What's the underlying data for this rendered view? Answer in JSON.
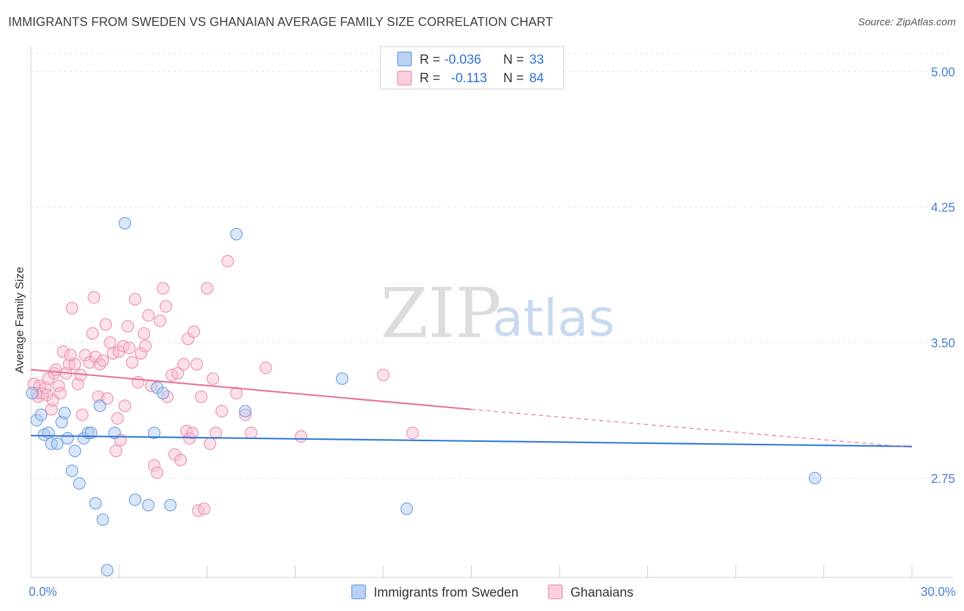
{
  "chart_data": {
    "type": "scatter",
    "title": "IMMIGRANTS FROM SWEDEN VS GHANAIAN AVERAGE FAMILY SIZE CORRELATION CHART",
    "source": "Source: ZipAtlas.com",
    "ylabel": "Average Family Size",
    "xlim": [
      0,
      30
    ],
    "ylim": [
      2.2,
      5.1
    ],
    "x_tick_labels": [
      "0.0%",
      "30.0%"
    ],
    "y_ticks": [
      2.75,
      3.5,
      4.25,
      5.0
    ],
    "y_tick_labels": [
      "2.75",
      "3.50",
      "4.25",
      "5.00"
    ],
    "watermark": {
      "zip": "ZIP",
      "atlas": "atlas"
    },
    "colors": {
      "blue": "#7aa6e6",
      "blue_line": "#2f78d6",
      "pink": "#f19ab8",
      "pink_line": "#e8709a"
    },
    "legend": [
      {
        "r_label": "R =",
        "r_value": "-0.036",
        "n_label": "N =",
        "n_value": "33"
      },
      {
        "r_label": "R =",
        "r_value": "-0.113",
        "n_label": "N =",
        "n_value": "84"
      }
    ],
    "series": [
      {
        "name": "Immigrants from Sweden",
        "color": "#7aa6e6",
        "trend": {
          "x0": 0,
          "y0": 2.985,
          "x1": 30,
          "y1": 2.925
        },
        "points": [
          [
            0.05,
            3.22
          ],
          [
            0.2,
            3.07
          ],
          [
            0.35,
            3.1
          ],
          [
            0.45,
            2.99
          ],
          [
            0.6,
            3.0
          ],
          [
            0.7,
            2.94
          ],
          [
            0.9,
            2.94
          ],
          [
            1.05,
            3.06
          ],
          [
            1.15,
            3.11
          ],
          [
            1.25,
            2.97
          ],
          [
            1.4,
            2.79
          ],
          [
            1.5,
            2.9
          ],
          [
            1.65,
            2.72
          ],
          [
            1.8,
            2.97
          ],
          [
            1.95,
            3.0
          ],
          [
            2.05,
            3.0
          ],
          [
            2.2,
            2.61
          ],
          [
            2.35,
            3.15
          ],
          [
            2.45,
            2.52
          ],
          [
            2.6,
            2.24
          ],
          [
            2.85,
            3.0
          ],
          [
            3.2,
            4.16
          ],
          [
            3.55,
            2.63
          ],
          [
            4.0,
            2.6
          ],
          [
            4.2,
            3.0
          ],
          [
            4.3,
            3.25
          ],
          [
            4.5,
            3.22
          ],
          [
            4.75,
            2.6
          ],
          [
            7.0,
            4.1
          ],
          [
            7.3,
            3.12
          ],
          [
            10.6,
            3.3
          ],
          [
            12.8,
            2.58
          ],
          [
            26.7,
            2.75
          ]
        ]
      },
      {
        "name": "Ghanaians",
        "color": "#f19ab8",
        "trend": {
          "x0": 0,
          "y0": 3.35,
          "x1": 15,
          "y1": 3.13,
          "x_dash_end": 30,
          "y_dash_end": 2.92
        },
        "points": [
          [
            0.1,
            3.27
          ],
          [
            0.2,
            3.22
          ],
          [
            0.25,
            3.2
          ],
          [
            0.3,
            3.26
          ],
          [
            0.4,
            3.22
          ],
          [
            0.5,
            3.25
          ],
          [
            0.55,
            3.21
          ],
          [
            0.6,
            3.3
          ],
          [
            0.7,
            3.13
          ],
          [
            0.75,
            3.18
          ],
          [
            0.8,
            3.33
          ],
          [
            0.85,
            3.35
          ],
          [
            0.95,
            3.26
          ],
          [
            1.0,
            3.22
          ],
          [
            1.1,
            3.45
          ],
          [
            1.2,
            3.33
          ],
          [
            1.3,
            3.38
          ],
          [
            1.35,
            3.43
          ],
          [
            1.4,
            3.69
          ],
          [
            1.5,
            3.38
          ],
          [
            1.6,
            3.27
          ],
          [
            1.7,
            3.32
          ],
          [
            1.75,
            3.1
          ],
          [
            1.85,
            3.43
          ],
          [
            2.0,
            3.39
          ],
          [
            2.1,
            3.55
          ],
          [
            2.15,
            3.75
          ],
          [
            2.2,
            3.42
          ],
          [
            2.3,
            3.2
          ],
          [
            2.35,
            3.38
          ],
          [
            2.45,
            3.4
          ],
          [
            2.55,
            3.6
          ],
          [
            2.6,
            3.19
          ],
          [
            2.7,
            3.5
          ],
          [
            2.8,
            3.44
          ],
          [
            2.9,
            2.9
          ],
          [
            2.95,
            3.08
          ],
          [
            3.0,
            3.45
          ],
          [
            3.05,
            2.96
          ],
          [
            3.15,
            3.48
          ],
          [
            3.2,
            3.15
          ],
          [
            3.3,
            3.59
          ],
          [
            3.35,
            3.47
          ],
          [
            3.45,
            3.39
          ],
          [
            3.55,
            3.74
          ],
          [
            3.65,
            3.28
          ],
          [
            3.75,
            3.44
          ],
          [
            3.85,
            3.55
          ],
          [
            3.9,
            3.48
          ],
          [
            4.0,
            3.65
          ],
          [
            4.1,
            3.26
          ],
          [
            4.2,
            2.82
          ],
          [
            4.3,
            2.78
          ],
          [
            4.4,
            3.62
          ],
          [
            4.5,
            3.8
          ],
          [
            4.6,
            3.7
          ],
          [
            4.65,
            3.2
          ],
          [
            4.8,
            3.32
          ],
          [
            4.9,
            2.88
          ],
          [
            5.0,
            3.33
          ],
          [
            5.1,
            2.85
          ],
          [
            5.2,
            3.38
          ],
          [
            5.3,
            3.01
          ],
          [
            5.35,
            3.52
          ],
          [
            5.4,
            2.97
          ],
          [
            5.5,
            3.0
          ],
          [
            5.55,
            3.56
          ],
          [
            5.65,
            3.38
          ],
          [
            5.7,
            2.57
          ],
          [
            5.8,
            3.2
          ],
          [
            5.9,
            2.58
          ],
          [
            6.0,
            3.8
          ],
          [
            6.1,
            2.94
          ],
          [
            6.2,
            3.3
          ],
          [
            6.3,
            3.0
          ],
          [
            6.5,
            3.12
          ],
          [
            6.7,
            3.95
          ],
          [
            7.0,
            3.22
          ],
          [
            7.3,
            3.1
          ],
          [
            7.5,
            3.0
          ],
          [
            8.0,
            3.36
          ],
          [
            9.2,
            2.98
          ],
          [
            12.0,
            3.32
          ],
          [
            13.0,
            3.0
          ]
        ]
      }
    ]
  }
}
